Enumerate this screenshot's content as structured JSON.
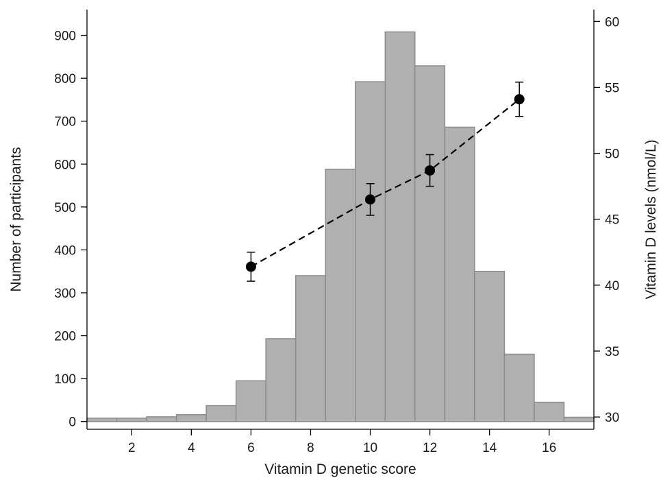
{
  "chart_data": {
    "type": "bar",
    "title": "",
    "xlabel": "Vitamin D genetic score",
    "ylabel": "Number of participants",
    "y2label": "Vitamin D levels (nmol/L)",
    "xlim": [
      0.5,
      17.5
    ],
    "ylim": [
      -18,
      960
    ],
    "y2lim": [
      29.07,
      60.9
    ],
    "x_ticks": [
      2,
      4,
      6,
      8,
      10,
      12,
      14,
      16
    ],
    "y_ticks": [
      0,
      100,
      200,
      300,
      400,
      500,
      600,
      700,
      800,
      900
    ],
    "y2_ticks": [
      30,
      35,
      40,
      45,
      50,
      55,
      60
    ],
    "grid": false,
    "bar_color": "#b0b0b0",
    "bar_edge_color": "#8c8c8c",
    "histogram": {
      "bin_width": 1,
      "x": [
        1,
        2,
        3,
        4,
        5,
        6,
        7,
        8,
        9,
        10,
        11,
        12,
        13,
        14,
        15,
        16,
        17
      ],
      "values": [
        8,
        8,
        11,
        16,
        37,
        95,
        193,
        340,
        588,
        792,
        908,
        829,
        686,
        350,
        157,
        45,
        10
      ]
    },
    "series": [
      {
        "axis": "right",
        "style": "dashed-line-with-markers",
        "color": "#000000",
        "x": [
          6,
          10,
          12,
          15
        ],
        "values": [
          41.4,
          46.5,
          48.7,
          54.1
        ],
        "error_low": [
          40.3,
          45.3,
          47.5,
          52.8
        ],
        "error_high": [
          42.5,
          47.7,
          49.9,
          55.4
        ]
      }
    ]
  }
}
